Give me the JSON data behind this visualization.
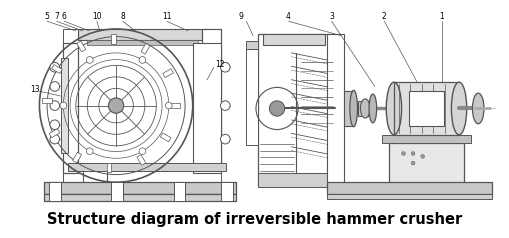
{
  "title": "Structure diagram of irreversible hammer crusher",
  "title_fontsize": 10.5,
  "title_fontweight": "bold",
  "bg_color": "#ffffff",
  "line_color": "#555555",
  "line_width": 0.7,
  "figsize": [
    5.1,
    2.38
  ],
  "dpi": 100
}
